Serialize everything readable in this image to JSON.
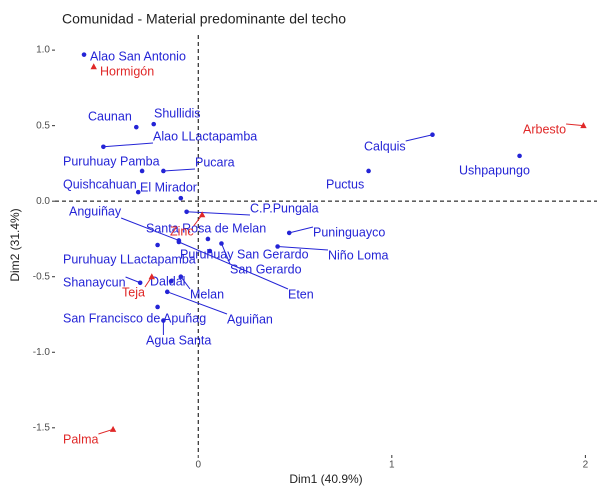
{
  "chart_data": {
    "type": "scatter",
    "title": "Comunidad - Material predominante del techo",
    "x_label": "Dim1 (40.9%)",
    "y_label": "Dim2 (31.4%)",
    "xlim": [
      -0.74,
      2.06
    ],
    "ylim": [
      -1.68,
      1.1
    ],
    "xticks": [
      0,
      1,
      2
    ],
    "yticks": [
      {
        "value": 1.0,
        "label": "1.0"
      },
      {
        "value": 0.5,
        "label": "0.5"
      },
      {
        "value": 0.0,
        "label": "0.0"
      },
      {
        "value": -0.5,
        "label": "-0.5"
      },
      {
        "value": -1.0,
        "label": "-1.0"
      },
      {
        "value": -1.5,
        "label": "-1.5"
      }
    ],
    "series": [
      {
        "color": "#2424d6",
        "marker": "circle",
        "labels": [
          "Alao San Antonio",
          "Caunan",
          "Shullidis",
          "Alao LLactapamba",
          "Puruhuay Pamba",
          "Pucara",
          "Quishcahuan",
          "El Mirador",
          "C.P.Pungala",
          "Calquis",
          "Ushpapungo",
          "Puctus",
          "Anguiñay",
          "Santa Rosa de Melan",
          "Puninguayco",
          "Niño Loma",
          "San Gerardo",
          "Eten",
          "Puruhuay LLactapamba",
          "Shanaycun",
          "Daldal",
          "Melan",
          "San Francisco de Apuñag",
          "Aguiñan",
          "Agua Santa",
          "Puruhuay San Gerardo"
        ],
        "x": [
          -0.59,
          -0.32,
          -0.23,
          -0.49,
          -0.29,
          -0.18,
          -0.31,
          -0.09,
          -0.06,
          1.21,
          1.66,
          0.88,
          -0.1,
          0.05,
          0.47,
          0.41,
          0.12,
          -0.1,
          -0.21,
          -0.3,
          -0.14,
          -0.09,
          -0.21,
          -0.16,
          -0.18,
          0.06
        ],
        "values": [
          0.97,
          0.49,
          0.51,
          0.36,
          0.2,
          0.2,
          0.06,
          0.02,
          -0.07,
          0.44,
          0.3,
          0.2,
          -0.26,
          -0.25,
          -0.21,
          -0.3,
          -0.28,
          -0.27,
          -0.29,
          -0.54,
          -0.53,
          -0.5,
          -0.7,
          -0.6,
          -0.79,
          -0.33
        ]
      },
      {
        "color": "#e02828",
        "marker": "triangle",
        "labels": [
          "Hormigón",
          "Arbesto",
          "Zinc",
          "Teja",
          "Palma"
        ],
        "x": [
          -0.54,
          1.99,
          0.02,
          -0.24,
          -0.44
        ],
        "values": [
          0.89,
          0.5,
          -0.09,
          -0.5,
          -1.51
        ]
      }
    ]
  }
}
